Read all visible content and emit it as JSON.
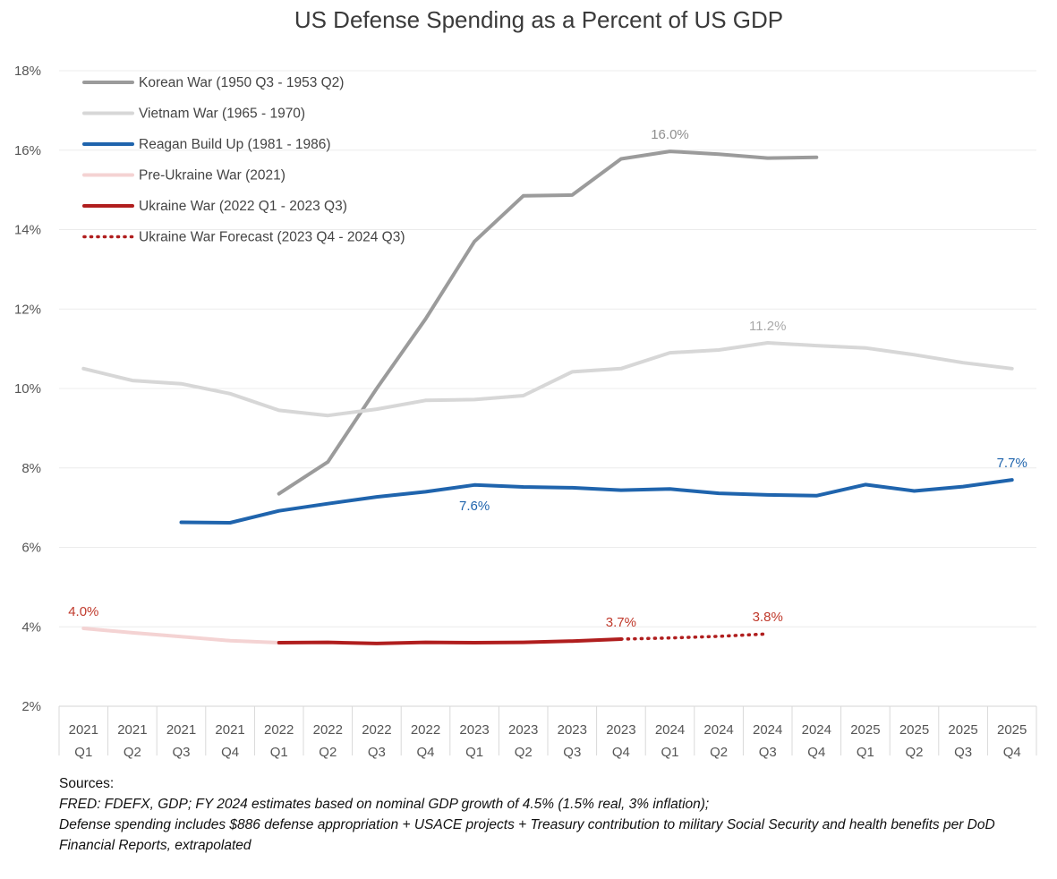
{
  "chart_data": {
    "type": "line",
    "title": "US Defense Spending as a Percent of US GDP",
    "xlabel": "",
    "ylabel": "",
    "ylim": [
      2,
      18
    ],
    "y_ticks": [
      "2%",
      "4%",
      "6%",
      "8%",
      "10%",
      "12%",
      "14%",
      "16%",
      "18%"
    ],
    "grid": "horizontal",
    "legend_position": "top-left",
    "categories": [
      [
        "2021",
        "Q1"
      ],
      [
        "2021",
        "Q2"
      ],
      [
        "2021",
        "Q3"
      ],
      [
        "2021",
        "Q4"
      ],
      [
        "2022",
        "Q1"
      ],
      [
        "2022",
        "Q2"
      ],
      [
        "2022",
        "Q3"
      ],
      [
        "2022",
        "Q4"
      ],
      [
        "2023",
        "Q1"
      ],
      [
        "2023",
        "Q2"
      ],
      [
        "2023",
        "Q3"
      ],
      [
        "2023",
        "Q4"
      ],
      [
        "2024",
        "Q1"
      ],
      [
        "2024",
        "Q2"
      ],
      [
        "2024",
        "Q3"
      ],
      [
        "2024",
        "Q4"
      ],
      [
        "2025",
        "Q1"
      ],
      [
        "2025",
        "Q2"
      ],
      [
        "2025",
        "Q3"
      ],
      [
        "2025",
        "Q4"
      ]
    ],
    "series": [
      {
        "name": "Korean War (1950 Q3 - 1953 Q2)",
        "color": "#9b9b9b",
        "dashed": false,
        "values": [
          null,
          null,
          null,
          null,
          7.35,
          8.15,
          10.0,
          11.75,
          13.7,
          14.85,
          14.87,
          15.78,
          15.97,
          15.9,
          15.8,
          15.82,
          null,
          null,
          null,
          null
        ]
      },
      {
        "name": "Vietnam War (1965 - 1970)",
        "color": "#d7d7d7",
        "dashed": false,
        "values": [
          10.5,
          10.2,
          10.12,
          9.87,
          9.45,
          9.32,
          9.48,
          9.7,
          9.72,
          9.82,
          10.42,
          10.5,
          10.9,
          10.97,
          11.15,
          11.08,
          11.02,
          10.85,
          10.65,
          10.5
        ]
      },
      {
        "name": "Reagan Build Up (1981 - 1986)",
        "color": "#1f64ad",
        "dashed": false,
        "values": [
          null,
          null,
          6.63,
          6.62,
          6.92,
          7.1,
          7.27,
          7.4,
          7.57,
          7.52,
          7.5,
          7.44,
          7.47,
          7.36,
          7.32,
          7.3,
          7.58,
          7.42,
          7.53,
          7.7
        ]
      },
      {
        "name": "Pre-Ukraine War (2021)",
        "color": "#f4d3d3",
        "dashed": false,
        "values": [
          3.96,
          3.85,
          3.75,
          3.65,
          3.6,
          null,
          null,
          null,
          null,
          null,
          null,
          null,
          null,
          null,
          null,
          null,
          null,
          null,
          null,
          null
        ]
      },
      {
        "name": "Ukraine War (2022 Q1 - 2023 Q3)",
        "color": "#b01e1e",
        "dashed": false,
        "values": [
          null,
          null,
          null,
          null,
          3.6,
          3.61,
          3.58,
          3.61,
          3.6,
          3.61,
          3.64,
          3.69,
          null,
          null,
          null,
          null,
          null,
          null,
          null,
          null
        ]
      },
      {
        "name": "Ukraine War Forecast (2023 Q4 - 2024 Q3)",
        "color": "#b01e1e",
        "dashed": true,
        "values": [
          null,
          null,
          null,
          null,
          null,
          null,
          null,
          null,
          null,
          null,
          null,
          3.69,
          3.72,
          3.76,
          3.82,
          null,
          null,
          null,
          null,
          null
        ]
      }
    ],
    "annotations": [
      {
        "text": "16.0%",
        "series": 0,
        "index": 12,
        "color": "#8f8f8f",
        "pos": "above"
      },
      {
        "text": "11.2%",
        "series": 1,
        "index": 14,
        "color": "#a9a9a9",
        "pos": "above"
      },
      {
        "text": "7.6%",
        "series": 2,
        "index": 8,
        "color": "#1f64ad",
        "pos": "below"
      },
      {
        "text": "7.7%",
        "series": 2,
        "index": 19,
        "color": "#1f64ad",
        "pos": "above"
      },
      {
        "text": "4.0%",
        "series": 3,
        "index": 0,
        "color": "#c0392b",
        "pos": "above"
      },
      {
        "text": "3.7%",
        "series": 4,
        "index": 11,
        "color": "#c0392b",
        "pos": "above"
      },
      {
        "text": "3.8%",
        "series": 5,
        "index": 14,
        "color": "#c0392b",
        "pos": "above"
      }
    ]
  },
  "sources": {
    "heading": "Sources:",
    "lines": [
      "FRED:  FDEFX, GDP; FY 2024 estimates based on nominal GDP growth of 4.5% (1.5% real, 3% inflation);",
      "Defense spending includes $886 defense appropriation + USACE projects +  Treasury contribution to military Social Security and health benefits per DoD Financial Reports, extrapolated"
    ]
  }
}
